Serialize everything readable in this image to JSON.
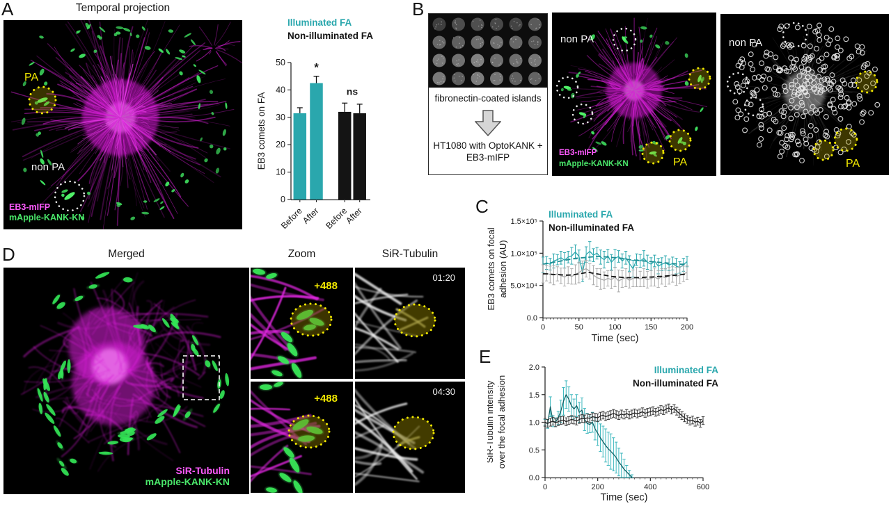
{
  "figure": {
    "panels": {
      "A": {
        "letter": "A",
        "title": "Temporal projection",
        "labels": {
          "pa": "PA",
          "non_pa": "non PA",
          "ch_magenta": "EB3-mIFP",
          "ch_green": "mApple-KANK-KN"
        }
      },
      "B": {
        "letter": "B",
        "flow": {
          "caption_top": "fibronectin-coated islands",
          "caption_bottom": "HT1080 with OptoKANK + EB3-mIFP"
        },
        "cell_image": {
          "non_pa": "non PA",
          "pa": "PA",
          "ch_magenta": "EB3-mIFP",
          "ch_green": "mApple-KANK-KN"
        },
        "detection_image": {
          "non_pa": "non PA",
          "pa": "PA"
        }
      },
      "C": {
        "letter": "C"
      },
      "D": {
        "letter": "D",
        "column_titles": [
          "Merged",
          "Zoom",
          "SiR-Tubulin"
        ],
        "labels": {
          "ch_magenta": "SiR-Tubulin",
          "ch_green": "mApple-KANK-KN",
          "stim_top": "+488",
          "stim_bottom": "+488",
          "time_top": "01:20",
          "time_bottom": "04:30"
        }
      },
      "E": {
        "letter": "E"
      }
    },
    "colors": {
      "teal": "#2aa7ad",
      "black": "#141414",
      "magenta": "#e326e3",
      "green": "#3fe05f",
      "yellow": "#f2e900"
    }
  },
  "chart_data": [
    {
      "id": "bar_A",
      "type": "bar",
      "ylabel": "EB3 comets on FA",
      "ylim": [
        0,
        50
      ],
      "yticks": [
        0,
        10,
        20,
        30,
        40,
        50
      ],
      "categories": [
        "Before",
        "After",
        "Before",
        "After"
      ],
      "values": [
        31.5,
        42.5,
        32,
        31.5
      ],
      "errors": [
        2,
        2.5,
        3.2,
        3.3
      ],
      "bar_colors": [
        "#2aa7ad",
        "#2aa7ad",
        "#141414",
        "#141414"
      ],
      "annotations": [
        {
          "text": "*",
          "over_bar": 1
        },
        {
          "text": "ns",
          "between": [
            2,
            3
          ]
        }
      ],
      "legend": [
        {
          "label": "Illuminated FA",
          "color": "#2aa7ad"
        },
        {
          "label": "Non-illuminated FA",
          "color": "#141414"
        }
      ],
      "legend_position": "top-left"
    },
    {
      "id": "line_C",
      "type": "line",
      "xlabel": "Time (sec)",
      "ylabel_lines": [
        "EB3 comets on focal",
        "adhesion (AU)"
      ],
      "xlim": [
        0,
        200
      ],
      "xticks": [
        0,
        50,
        100,
        150,
        200
      ],
      "ylim": [
        0,
        150000
      ],
      "ytick_values": [
        0,
        50000,
        100000,
        150000
      ],
      "ytick_labels": [
        "0.0",
        "5.0×10⁴",
        "1.0×10⁵",
        "1.5×10⁵"
      ],
      "x_step": 5,
      "grid": false,
      "legend": [
        {
          "label": "Illuminated FA",
          "color": "#2aa7ad"
        },
        {
          "label": "Non-illuminated FA",
          "color": "#141414"
        }
      ],
      "legend_position": "top-left",
      "series": [
        {
          "name": "Illuminated FA",
          "line_color": "#2aa7ad",
          "err_color": "#2aa7ad",
          "trend_color": "#1d8d93",
          "values": [
            82000,
            85000,
            83000,
            88000,
            90000,
            93000,
            89000,
            94000,
            96000,
            102000,
            95000,
            70000,
            98000,
            103000,
            97000,
            100000,
            94000,
            90000,
            96000,
            86000,
            92000,
            95000,
            88000,
            93000,
            84000,
            76000,
            90000,
            88000,
            92000,
            86000,
            83000,
            88000,
            80000,
            83000,
            85000,
            82000,
            84000,
            80000,
            78000,
            82000,
            87000
          ],
          "errors": [
            12000,
            10000,
            9000,
            11000,
            8000,
            10000,
            12000,
            9000,
            13000,
            11000,
            10000,
            14000,
            12000,
            15000,
            10000,
            9000,
            11000,
            13000,
            10000,
            12000,
            14000,
            9000,
            11000,
            10000,
            12000,
            13000,
            9000,
            10000,
            12000,
            11000,
            10000,
            9000,
            12000,
            10000,
            11000,
            9000,
            10000,
            12000,
            9000,
            10000,
            8000
          ],
          "trend": [
            83000,
            84000,
            85000,
            86000,
            87000,
            88000,
            89000,
            90000,
            91000,
            92000,
            92500,
            93000,
            93500,
            94000,
            94500,
            95000,
            95000,
            94500,
            94000,
            93500,
            93000,
            92500,
            92000,
            91000,
            90000,
            89500,
            89000,
            88500,
            88000,
            87500,
            87000,
            86500,
            86000,
            85500,
            85000,
            84500,
            84000,
            83500,
            83000,
            83000,
            83000
          ]
        },
        {
          "name": "Non-illuminated FA",
          "line_color": "#a9a9a9",
          "err_color": "#ababab",
          "trend_color": "#141414",
          "values": [
            68000,
            69000,
            67000,
            66000,
            68000,
            65000,
            63000,
            66000,
            64000,
            67000,
            70000,
            74000,
            76000,
            72000,
            66000,
            62000,
            60000,
            58000,
            61000,
            59000,
            63000,
            57000,
            60000,
            62000,
            58000,
            61000,
            63000,
            60000,
            62000,
            59000,
            61000,
            63000,
            60000,
            64000,
            62000,
            65000,
            67000,
            64000,
            66000,
            68000,
            70000
          ],
          "errors": [
            14000,
            12000,
            13000,
            15000,
            11000,
            12000,
            14000,
            13000,
            12000,
            15000,
            16000,
            14000,
            13000,
            12000,
            15000,
            14000,
            16000,
            13000,
            12000,
            14000,
            15000,
            17000,
            13000,
            14000,
            12000,
            13000,
            15000,
            12000,
            14000,
            13000,
            12000,
            14000,
            13000,
            12000,
            14000,
            13000,
            12000,
            14000,
            13000,
            12000,
            11000
          ],
          "trend": [
            68000,
            68000,
            67500,
            67000,
            67000,
            66500,
            66000,
            66000,
            66500,
            67000,
            68000,
            69000,
            70000,
            70000,
            69000,
            68000,
            67000,
            66000,
            65000,
            64000,
            63500,
            63000,
            62500,
            62000,
            62000,
            62000,
            62000,
            62000,
            62500,
            63000,
            63000,
            63500,
            64000,
            64000,
            64500,
            65000,
            65500,
            66000,
            66500,
            67000,
            68000
          ]
        }
      ]
    },
    {
      "id": "line_E",
      "type": "line",
      "xlabel": "Time (sec)",
      "ylabel_lines": [
        "SiR-Tubulin intensity",
        "over the focal adhesion"
      ],
      "xlim": [
        0,
        600
      ],
      "xticks": [
        0,
        200,
        400,
        600
      ],
      "ylim": [
        0,
        2
      ],
      "ytick_values": [
        0,
        0.5,
        1,
        1.5,
        2
      ],
      "ytick_labels": [
        "0.0",
        "0.5",
        "1.0",
        "1.5",
        "2.0"
      ],
      "x_step": 10,
      "grid": false,
      "legend": [
        {
          "label": "Illuminated FA",
          "color": "#2aa7ad"
        },
        {
          "label": "Non-illuminated FA",
          "color": "#141414"
        }
      ],
      "legend_position": "top-right",
      "series": [
        {
          "name": "Illuminated FA",
          "line_color": "#0f5f63",
          "err_color": "#3cb7bd",
          "values": [
            1.0,
            0.97,
            1.28,
            1.02,
            1.0,
            1.08,
            1.2,
            1.38,
            1.5,
            1.42,
            1.3,
            1.24,
            1.3,
            1.18,
            1.22,
            1.05,
            0.98,
            0.96,
            1.0,
            0.88,
            0.8,
            0.72,
            0.65,
            0.58,
            0.52,
            0.47,
            0.42,
            0.36,
            0.28,
            0.22,
            0.15,
            0.1,
            0.05,
            0.0
          ],
          "errors": [
            0.05,
            0.08,
            0.18,
            0.1,
            0.08,
            0.12,
            0.2,
            0.25,
            0.25,
            0.22,
            0.2,
            0.18,
            0.2,
            0.18,
            0.22,
            0.2,
            0.18,
            0.15,
            0.18,
            0.2,
            0.22,
            0.25,
            0.28,
            0.3,
            0.3,
            0.32,
            0.3,
            0.28,
            0.25,
            0.22,
            0.18,
            0.12,
            0.08,
            0.05
          ]
        },
        {
          "name": "Non-illuminated FA",
          "line_color": "#222222",
          "err_color": "#3a3a3a",
          "values": [
            1.0,
            0.98,
            1.0,
            1.02,
            0.99,
            1.01,
            1.03,
            1.04,
            1.01,
            1.03,
            1.05,
            1.04,
            1.02,
            1.05,
            1.07,
            1.06,
            1.08,
            1.07,
            1.1,
            1.09,
            1.08,
            1.11,
            1.13,
            1.1,
            1.12,
            1.14,
            1.16,
            1.14,
            1.12,
            1.15,
            1.13,
            1.16,
            1.13,
            1.15,
            1.17,
            1.15,
            1.17,
            1.19,
            1.16,
            1.18,
            1.19,
            1.21,
            1.18,
            1.2,
            1.23,
            1.21,
            1.24,
            1.26,
            1.22,
            1.25,
            1.2,
            1.16,
            1.12,
            1.08,
            1.05,
            1.02,
            1.04,
            1.0,
            1.02,
            0.98,
            1.03
          ],
          "errors": 0.07
        }
      ]
    }
  ]
}
